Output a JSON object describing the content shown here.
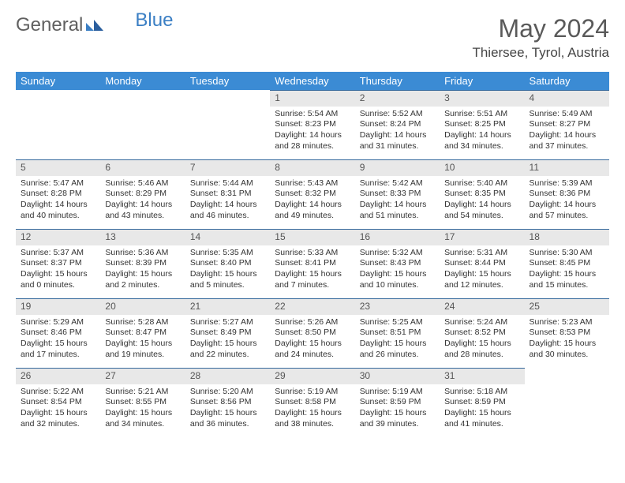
{
  "brand": {
    "part1": "General",
    "part2": "Blue"
  },
  "title": "May 2024",
  "location": "Thiersee, Tyrol, Austria",
  "colors": {
    "header_bg": "#3b8bd4",
    "header_text": "#ffffff",
    "daynum_bg": "#e8e8e8",
    "border": "#34689c",
    "brand_gray": "#606060",
    "brand_blue": "#3b7fc4",
    "text": "#333333"
  },
  "dayNames": [
    "Sunday",
    "Monday",
    "Tuesday",
    "Wednesday",
    "Thursday",
    "Friday",
    "Saturday"
  ],
  "weeks": [
    [
      {
        "n": "",
        "sr": "",
        "ss": "",
        "dl": ""
      },
      {
        "n": "",
        "sr": "",
        "ss": "",
        "dl": ""
      },
      {
        "n": "",
        "sr": "",
        "ss": "",
        "dl": ""
      },
      {
        "n": "1",
        "sr": "5:54 AM",
        "ss": "8:23 PM",
        "dl": "14 hours and 28 minutes."
      },
      {
        "n": "2",
        "sr": "5:52 AM",
        "ss": "8:24 PM",
        "dl": "14 hours and 31 minutes."
      },
      {
        "n": "3",
        "sr": "5:51 AM",
        "ss": "8:25 PM",
        "dl": "14 hours and 34 minutes."
      },
      {
        "n": "4",
        "sr": "5:49 AM",
        "ss": "8:27 PM",
        "dl": "14 hours and 37 minutes."
      }
    ],
    [
      {
        "n": "5",
        "sr": "5:47 AM",
        "ss": "8:28 PM",
        "dl": "14 hours and 40 minutes."
      },
      {
        "n": "6",
        "sr": "5:46 AM",
        "ss": "8:29 PM",
        "dl": "14 hours and 43 minutes."
      },
      {
        "n": "7",
        "sr": "5:44 AM",
        "ss": "8:31 PM",
        "dl": "14 hours and 46 minutes."
      },
      {
        "n": "8",
        "sr": "5:43 AM",
        "ss": "8:32 PM",
        "dl": "14 hours and 49 minutes."
      },
      {
        "n": "9",
        "sr": "5:42 AM",
        "ss": "8:33 PM",
        "dl": "14 hours and 51 minutes."
      },
      {
        "n": "10",
        "sr": "5:40 AM",
        "ss": "8:35 PM",
        "dl": "14 hours and 54 minutes."
      },
      {
        "n": "11",
        "sr": "5:39 AM",
        "ss": "8:36 PM",
        "dl": "14 hours and 57 minutes."
      }
    ],
    [
      {
        "n": "12",
        "sr": "5:37 AM",
        "ss": "8:37 PM",
        "dl": "15 hours and 0 minutes."
      },
      {
        "n": "13",
        "sr": "5:36 AM",
        "ss": "8:39 PM",
        "dl": "15 hours and 2 minutes."
      },
      {
        "n": "14",
        "sr": "5:35 AM",
        "ss": "8:40 PM",
        "dl": "15 hours and 5 minutes."
      },
      {
        "n": "15",
        "sr": "5:33 AM",
        "ss": "8:41 PM",
        "dl": "15 hours and 7 minutes."
      },
      {
        "n": "16",
        "sr": "5:32 AM",
        "ss": "8:43 PM",
        "dl": "15 hours and 10 minutes."
      },
      {
        "n": "17",
        "sr": "5:31 AM",
        "ss": "8:44 PM",
        "dl": "15 hours and 12 minutes."
      },
      {
        "n": "18",
        "sr": "5:30 AM",
        "ss": "8:45 PM",
        "dl": "15 hours and 15 minutes."
      }
    ],
    [
      {
        "n": "19",
        "sr": "5:29 AM",
        "ss": "8:46 PM",
        "dl": "15 hours and 17 minutes."
      },
      {
        "n": "20",
        "sr": "5:28 AM",
        "ss": "8:47 PM",
        "dl": "15 hours and 19 minutes."
      },
      {
        "n": "21",
        "sr": "5:27 AM",
        "ss": "8:49 PM",
        "dl": "15 hours and 22 minutes."
      },
      {
        "n": "22",
        "sr": "5:26 AM",
        "ss": "8:50 PM",
        "dl": "15 hours and 24 minutes."
      },
      {
        "n": "23",
        "sr": "5:25 AM",
        "ss": "8:51 PM",
        "dl": "15 hours and 26 minutes."
      },
      {
        "n": "24",
        "sr": "5:24 AM",
        "ss": "8:52 PM",
        "dl": "15 hours and 28 minutes."
      },
      {
        "n": "25",
        "sr": "5:23 AM",
        "ss": "8:53 PM",
        "dl": "15 hours and 30 minutes."
      }
    ],
    [
      {
        "n": "26",
        "sr": "5:22 AM",
        "ss": "8:54 PM",
        "dl": "15 hours and 32 minutes."
      },
      {
        "n": "27",
        "sr": "5:21 AM",
        "ss": "8:55 PM",
        "dl": "15 hours and 34 minutes."
      },
      {
        "n": "28",
        "sr": "5:20 AM",
        "ss": "8:56 PM",
        "dl": "15 hours and 36 minutes."
      },
      {
        "n": "29",
        "sr": "5:19 AM",
        "ss": "8:58 PM",
        "dl": "15 hours and 38 minutes."
      },
      {
        "n": "30",
        "sr": "5:19 AM",
        "ss": "8:59 PM",
        "dl": "15 hours and 39 minutes."
      },
      {
        "n": "31",
        "sr": "5:18 AM",
        "ss": "8:59 PM",
        "dl": "15 hours and 41 minutes."
      },
      {
        "n": "",
        "sr": "",
        "ss": "",
        "dl": ""
      }
    ]
  ],
  "labels": {
    "sunrise": "Sunrise:",
    "sunset": "Sunset:",
    "daylight": "Daylight:"
  }
}
